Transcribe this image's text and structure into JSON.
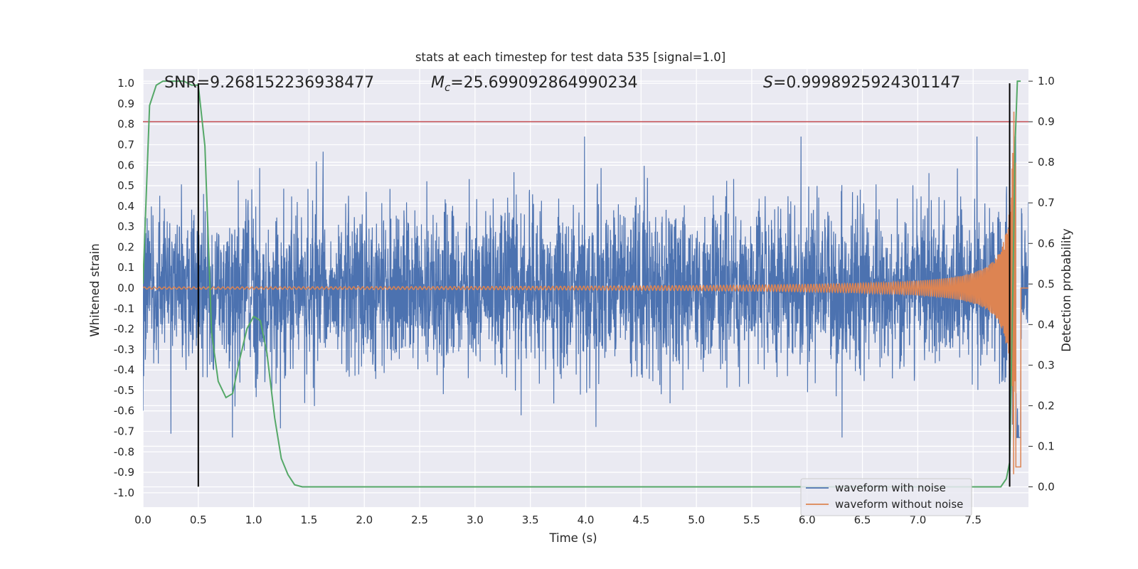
{
  "chart_data": {
    "type": "line",
    "title": "stats at each timestep for test data 535 [signal=1.0]",
    "xlabel": "Time (s)",
    "ylabel": "Whitened strain",
    "y2label": "Detection probability",
    "xlim": [
      0.0,
      8.0
    ],
    "ylim": [
      -1.07,
      1.07
    ],
    "y2lim": [
      -0.05,
      1.03
    ],
    "xticks": [
      "0.0",
      "0.5",
      "1.0",
      "1.5",
      "2.0",
      "2.5",
      "3.0",
      "3.5",
      "4.0",
      "4.5",
      "5.0",
      "5.5",
      "6.0",
      "6.5",
      "7.0",
      "7.5"
    ],
    "yticks": [
      "1.0",
      "0.9",
      "0.8",
      "0.7",
      "0.6",
      "0.5",
      "0.4",
      "0.3",
      "0.2",
      "0.1",
      "0.0",
      "-0.1",
      "-0.2",
      "-0.3",
      "-0.4",
      "-0.5",
      "-0.6",
      "-0.7",
      "-0.8",
      "-0.9",
      "-1.0"
    ],
    "y2ticks": [
      "1.0",
      "0.9",
      "0.8",
      "0.7",
      "0.6",
      "0.5",
      "0.4",
      "0.3",
      "0.2",
      "0.1",
      "0.0"
    ],
    "grid": true,
    "legend_position": "lower-right",
    "annotations": {
      "snr": "SNR=9.268152236938477",
      "mc_symbol": "M",
      "mc_sub": "c",
      "mc_value": "=25.699092864990234",
      "s_symbol": "S",
      "s_value": "=0.9998925924301147"
    },
    "threshold": {
      "value": 0.9,
      "axis": "y2",
      "color": "#c44e52"
    },
    "vlines": [
      {
        "x": 0.5,
        "ymin": -0.97,
        "ymax": 1.0,
        "color": "#000000"
      },
      {
        "x": 7.83,
        "ymin": -0.97,
        "ymax": 1.0,
        "color": "#000000"
      }
    ],
    "series": [
      {
        "name": "waveform with noise",
        "color": "#4c72b0",
        "axis": "y",
        "envelope": {
          "typical_amplitude": 0.35,
          "max_peak": 0.74,
          "min_peak": -0.73
        }
      },
      {
        "name": "waveform without noise",
        "color": "#dd8452",
        "axis": "y",
        "chirp": {
          "start_amplitude": 0.005,
          "peak_time": 7.89,
          "peak_amplitude": 0.95
        }
      },
      {
        "name": "detection probability",
        "color": "#55a868",
        "axis": "y2",
        "x": [
          0.0,
          0.06,
          0.12,
          0.18,
          0.25,
          0.31,
          0.37,
          0.44,
          0.5,
          0.56,
          0.62,
          0.68,
          0.75,
          0.81,
          0.87,
          0.94,
          1.0,
          1.06,
          1.12,
          1.19,
          1.25,
          1.31,
          1.37,
          1.44,
          1.5,
          2.0,
          3.0,
          4.0,
          5.0,
          6.0,
          7.0,
          7.75,
          7.8,
          7.83,
          7.86,
          7.88,
          7.9,
          7.93
        ],
        "values": [
          0.5,
          0.94,
          0.99,
          1.0,
          1.0,
          1.0,
          1.0,
          0.99,
          0.99,
          0.84,
          0.38,
          0.26,
          0.22,
          0.23,
          0.31,
          0.39,
          0.42,
          0.41,
          0.33,
          0.17,
          0.07,
          0.03,
          0.005,
          0.0,
          0.0,
          0.0,
          0.0,
          0.0,
          0.0,
          0.0,
          0.0,
          0.0,
          0.02,
          0.06,
          0.5,
          0.85,
          1.0,
          1.0
        ]
      }
    ]
  }
}
